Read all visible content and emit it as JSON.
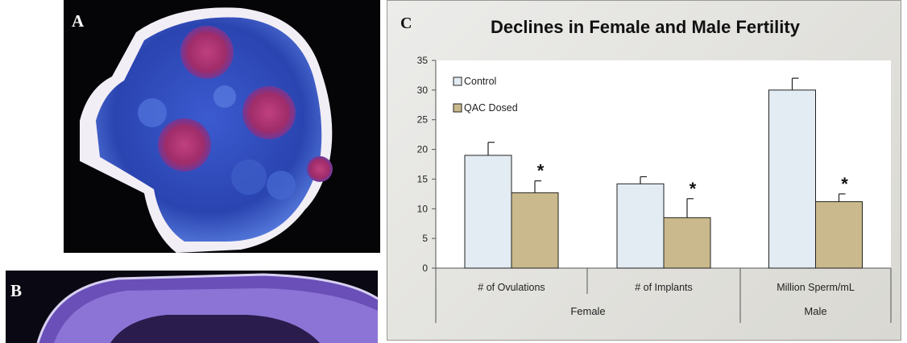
{
  "panels": {
    "a_label": "A",
    "b_label": "B",
    "c_label": "C"
  },
  "colors": {
    "control": "#e3ecf3",
    "qac": "#c9b98c",
    "tissue_blue": "#2f4fbf",
    "follicle_magenta": "#a8306f"
  },
  "chart_data": {
    "type": "bar",
    "title": "Declines in Female and Male Fertility",
    "categories": [
      "# of Ovulations",
      "# of Implants",
      "Million Sperm/mL"
    ],
    "groups": [
      {
        "label": "Female",
        "categories": [
          "# of Ovulations",
          "# of Implants"
        ]
      },
      {
        "label": "Male",
        "categories": [
          "Million Sperm/mL"
        ]
      }
    ],
    "series": [
      {
        "name": "Control",
        "values": [
          19,
          14.2,
          30
        ],
        "errors": [
          2.2,
          1.2,
          2.0
        ]
      },
      {
        "name": "QAC Dosed",
        "values": [
          12.7,
          8.5,
          11.2
        ],
        "errors": [
          2.0,
          3.2,
          1.3
        ]
      }
    ],
    "significance": [
      "*",
      "*",
      "*"
    ],
    "ylim": [
      0,
      35
    ],
    "yticks": [
      0,
      5,
      10,
      15,
      20,
      25,
      30,
      35
    ],
    "legend": "top-left"
  }
}
